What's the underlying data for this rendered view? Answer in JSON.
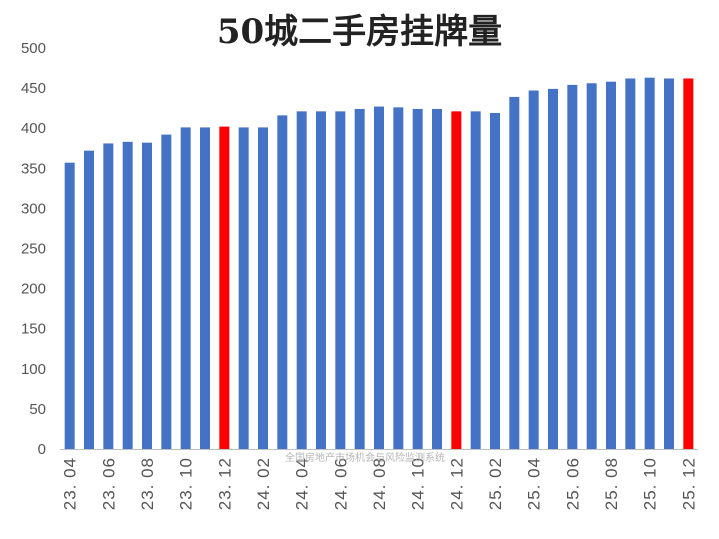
{
  "chart_data": {
    "type": "bar",
    "title": "50城二手房挂牌量",
    "xlabel": "",
    "ylabel": "",
    "ylim": [
      0,
      500
    ],
    "yticks": [
      0,
      50,
      100,
      150,
      200,
      250,
      300,
      350,
      400,
      450,
      500
    ],
    "grid": false,
    "legend": "none",
    "categories": [
      "23.04",
      "23.05",
      "23.06",
      "23.07",
      "23.08",
      "23.09",
      "23.10",
      "23.11",
      "23.12",
      "24.01",
      "24.02",
      "24.03",
      "24.04",
      "24.05",
      "24.06",
      "24.07",
      "24.08",
      "24.09",
      "24.10",
      "24.11",
      "24.12",
      "25.01",
      "25.02",
      "25.03",
      "25.04",
      "25.05",
      "25.06",
      "25.07",
      "25.08",
      "25.09",
      "25.10",
      "25.11",
      "25.12"
    ],
    "xtick_labels": [
      "23. 04",
      "23. 06",
      "23. 08",
      "23. 10",
      "23. 12",
      "24. 02",
      "24. 04",
      "24. 06",
      "24. 08",
      "24. 10",
      "24. 12",
      "25. 02",
      "25. 04",
      "25. 06",
      "25. 08",
      "25. 10",
      "25. 12"
    ],
    "values": [
      357,
      372,
      381,
      383,
      382,
      392,
      401,
      401,
      402,
      401,
      401,
      416,
      421,
      421,
      421,
      424,
      427,
      426,
      424,
      424,
      421,
      421,
      419,
      439,
      447,
      449,
      454,
      456,
      458,
      462,
      463,
      462,
      462
    ],
    "highlighted_categories": [
      "23.12",
      "24.12",
      "25.12"
    ],
    "bar_color": "#4472C4",
    "highlight_color": "#FF0000",
    "watermark": "全国房地产市场机会与风险监测系统"
  }
}
